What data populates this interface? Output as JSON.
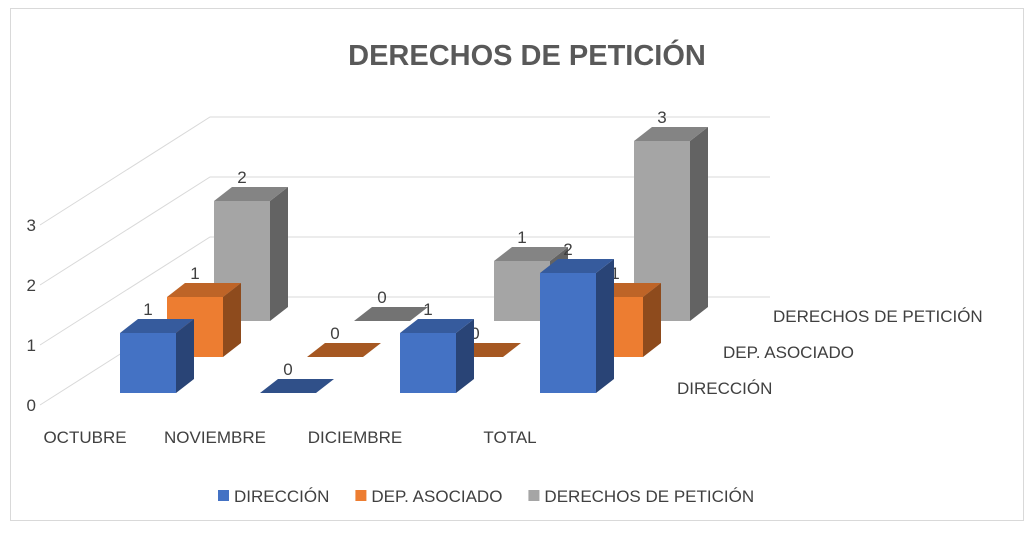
{
  "chart_data": {
    "type": "bar3d",
    "title": "DERECHOS DE PETICIÓN",
    "categories": [
      "OCTUBRE",
      "NOVIEMBRE",
      "DICIEMBRE",
      "TOTAL"
    ],
    "series": [
      {
        "name": "DIRECCIÓN",
        "color": "#4472c4",
        "values": [
          1,
          0,
          1,
          2
        ]
      },
      {
        "name": "DEP. ASOCIADO",
        "color": "#ed7d31",
        "values": [
          1,
          0,
          0,
          1
        ]
      },
      {
        "name": "DERECHOS DE PETICIÓN",
        "color": "#a5a5a5",
        "values": [
          2,
          0,
          1,
          3
        ]
      }
    ],
    "ylim": [
      0,
      3
    ],
    "yticks": [
      0,
      1,
      2,
      3
    ],
    "grid": true
  }
}
